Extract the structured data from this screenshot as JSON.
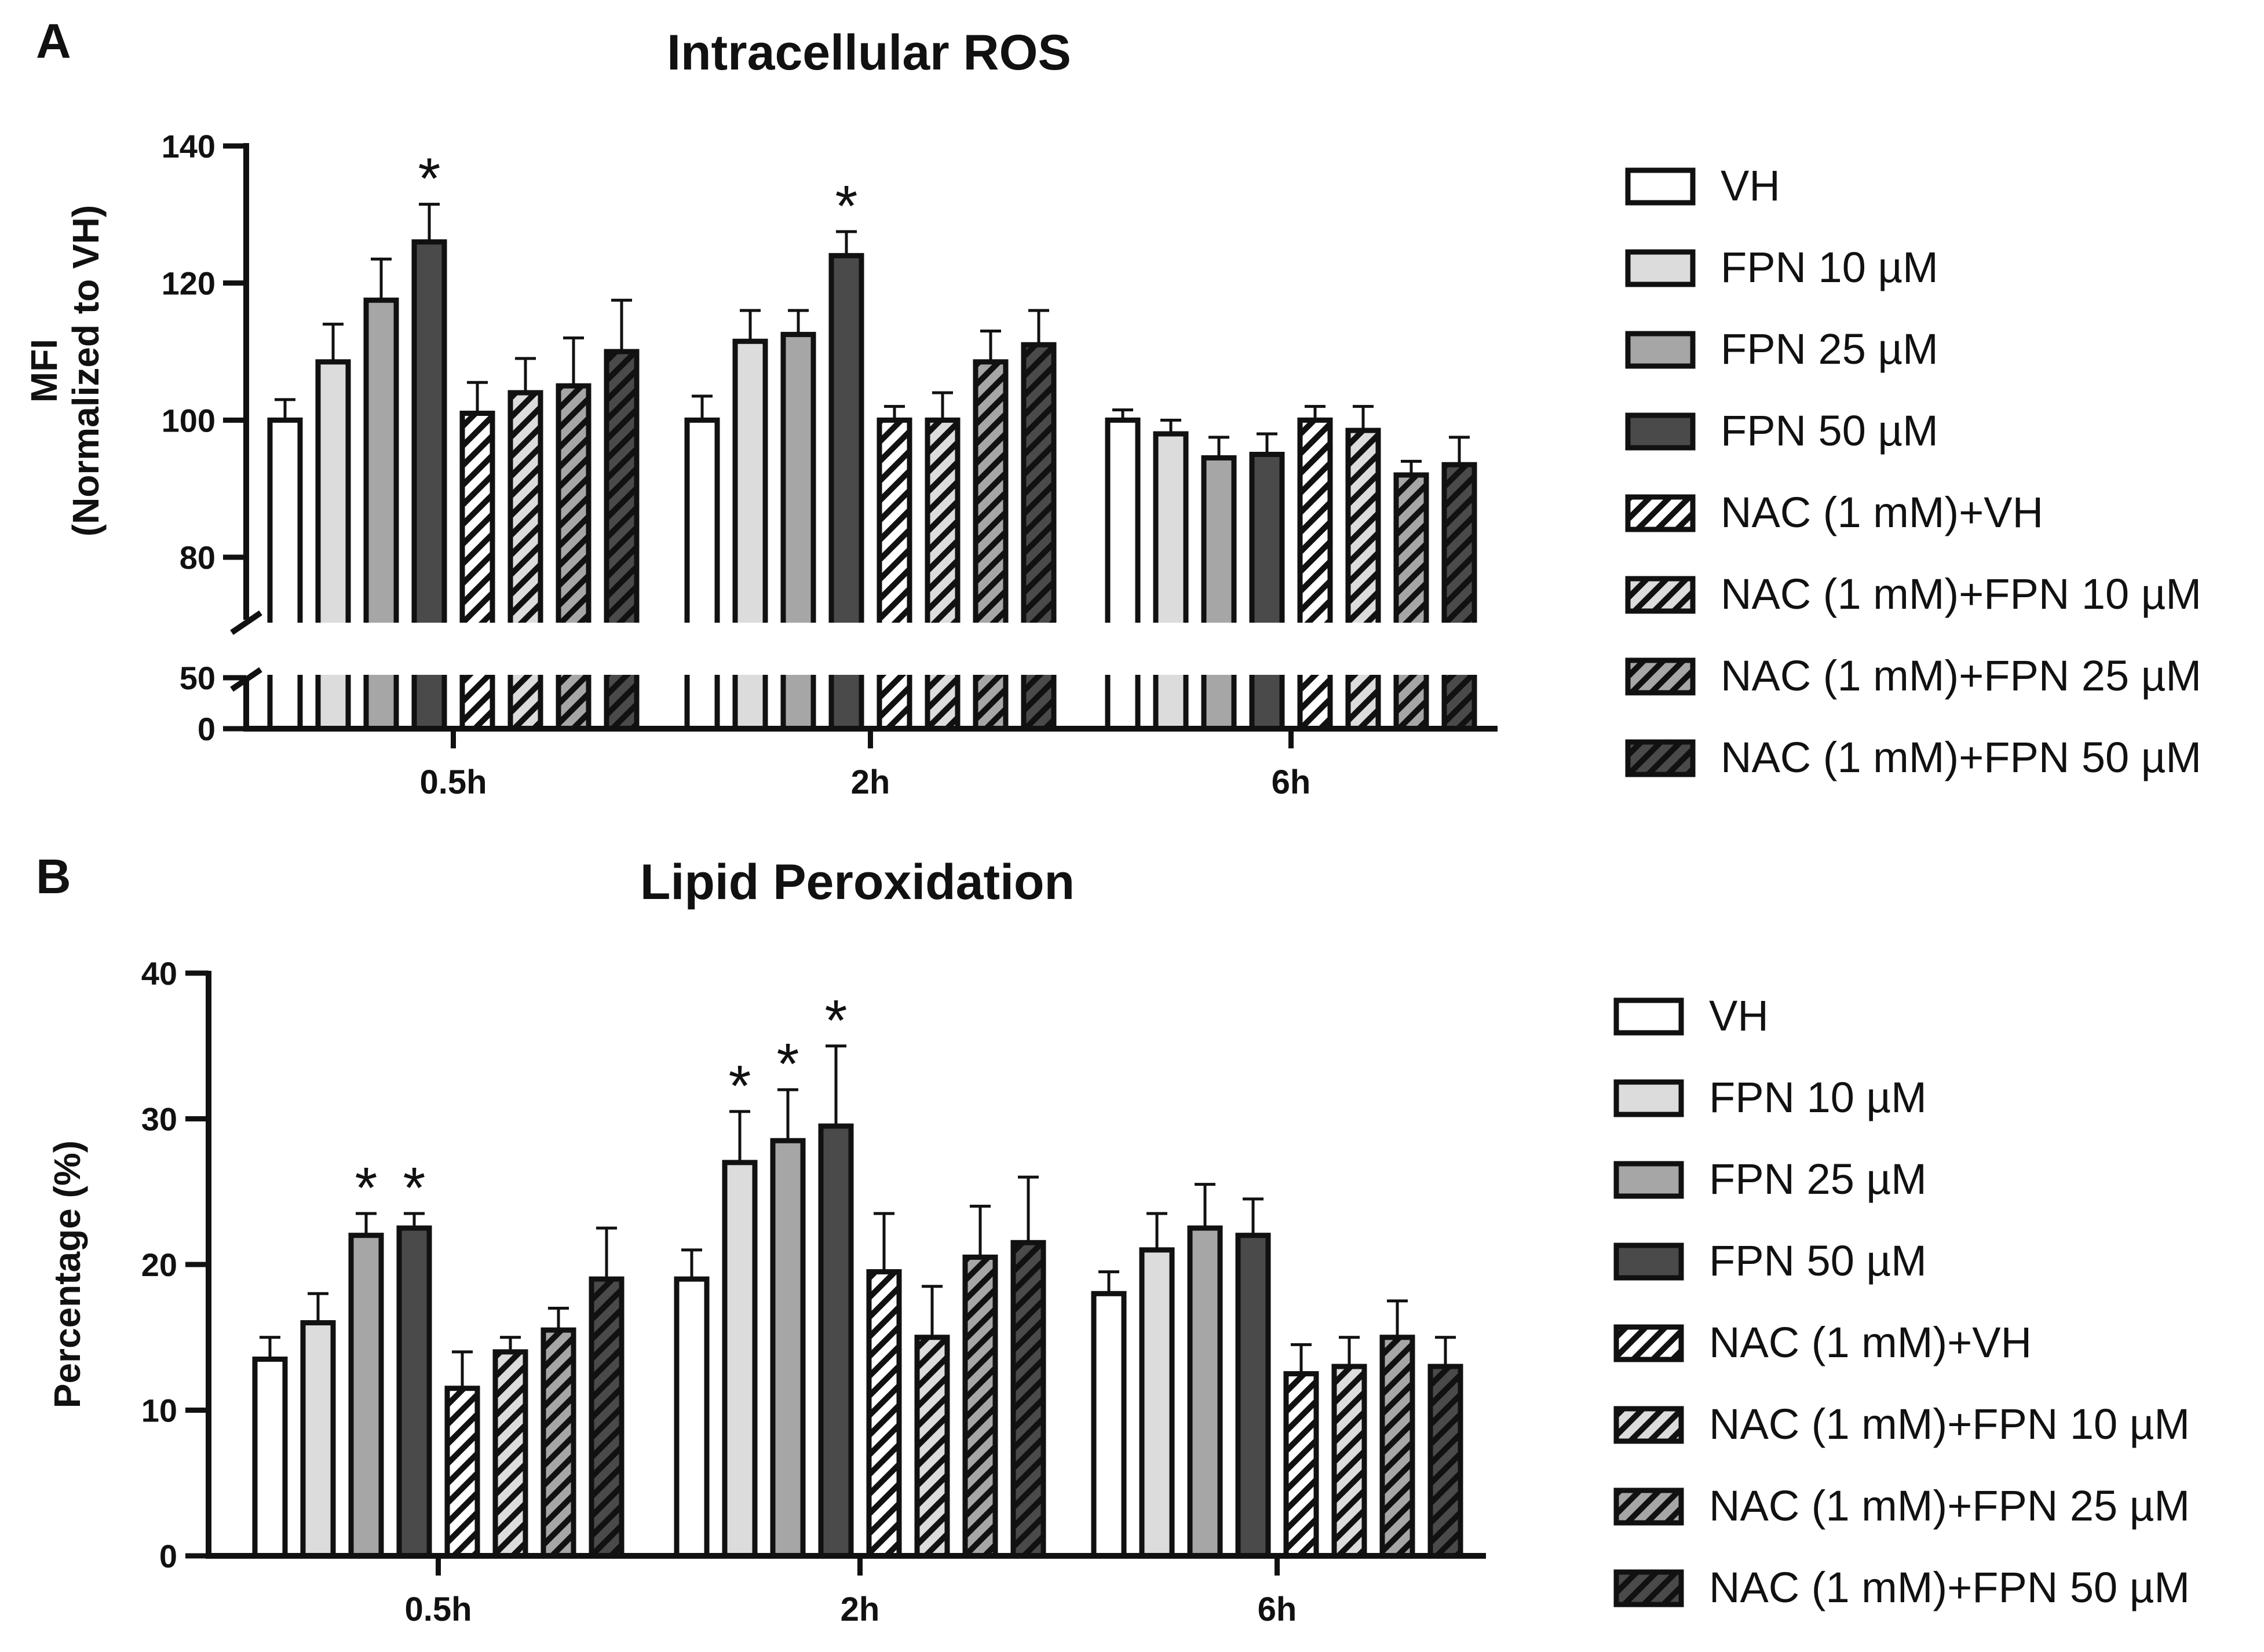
{
  "styles": [
    {
      "fill": "#ffffff",
      "hatch": false
    },
    {
      "fill": "#dcdcdc",
      "hatch": false
    },
    {
      "fill": "#a6a6a6",
      "hatch": false
    },
    {
      "fill": "#4a4a4a",
      "hatch": false
    },
    {
      "fill": "#ffffff",
      "hatch": true
    },
    {
      "fill": "#dcdcdc",
      "hatch": true
    },
    {
      "fill": "#a6a6a6",
      "hatch": true
    },
    {
      "fill": "#4a4a4a",
      "hatch": true
    }
  ],
  "chart_data": [
    {
      "panel": "A",
      "type": "bar",
      "title": "Intracellular ROS",
      "ylabel_line1": "MFI",
      "ylabel_line2": "(Normalized to VH)",
      "xlabel": "",
      "axis_break": {
        "lower_ticks": [
          0,
          50
        ],
        "upper_range": [
          70,
          140
        ]
      },
      "yticks": [
        80,
        100,
        120,
        140
      ],
      "categories": [
        "0.5h",
        "2h",
        "6h"
      ],
      "series": [
        {
          "name": "VH",
          "values": [
            100,
            100,
            100
          ],
          "errors": [
            3,
            3.5,
            1.5
          ],
          "sig": [
            false,
            false,
            false
          ]
        },
        {
          "name": "FPN 10 µM",
          "values": [
            108.5,
            111.5,
            98
          ],
          "errors": [
            5.5,
            4.5,
            2
          ],
          "sig": [
            false,
            false,
            false
          ]
        },
        {
          "name": "FPN 25 µM",
          "values": [
            117.5,
            112.5,
            94.5
          ],
          "errors": [
            6,
            3.5,
            3
          ],
          "sig": [
            false,
            false,
            false
          ]
        },
        {
          "name": "FPN 50 µM",
          "values": [
            126,
            124,
            95
          ],
          "errors": [
            5.5,
            3.5,
            3
          ],
          "sig": [
            true,
            true,
            false
          ]
        },
        {
          "name": "NAC (1 mM)+VH",
          "values": [
            101,
            100,
            100
          ],
          "errors": [
            4.5,
            2,
            2
          ],
          "sig": [
            false,
            false,
            false
          ]
        },
        {
          "name": "NAC (1 mM)+FPN 10 µM",
          "values": [
            104,
            100,
            98.5
          ],
          "errors": [
            5,
            4,
            3.5
          ],
          "sig": [
            false,
            false,
            false
          ]
        },
        {
          "name": "NAC (1 mM)+FPN 25 µM",
          "values": [
            105,
            108.5,
            92
          ],
          "errors": [
            7,
            4.5,
            2
          ],
          "sig": [
            false,
            false,
            false
          ]
        },
        {
          "name": "NAC (1 mM)+FPN 50 µM",
          "values": [
            110,
            111,
            93.5
          ],
          "errors": [
            7.5,
            5,
            4
          ],
          "sig": [
            false,
            false,
            false
          ]
        }
      ]
    },
    {
      "panel": "B",
      "type": "bar",
      "title": "Lipid Peroxidation",
      "ylabel": "Percentage (%)",
      "xlabel": "",
      "ylim": [
        0,
        40
      ],
      "yticks": [
        0,
        10,
        20,
        30,
        40
      ],
      "categories": [
        "0.5h",
        "2h",
        "6h"
      ],
      "series": [
        {
          "name": "VH",
          "values": [
            13.5,
            19,
            18
          ],
          "errors": [
            1.5,
            2,
            1.5
          ],
          "sig": [
            false,
            false,
            false
          ]
        },
        {
          "name": "FPN 10 µM",
          "values": [
            16,
            27,
            21
          ],
          "errors": [
            2,
            3.5,
            2.5
          ],
          "sig": [
            false,
            true,
            false
          ]
        },
        {
          "name": "FPN 25 µM",
          "values": [
            22,
            28.5,
            22.5
          ],
          "errors": [
            1.5,
            3.5,
            3
          ],
          "sig": [
            true,
            true,
            false
          ]
        },
        {
          "name": "FPN 50 µM",
          "values": [
            22.5,
            29.5,
            22
          ],
          "errors": [
            1,
            5.5,
            2.5
          ],
          "sig": [
            true,
            true,
            false
          ]
        },
        {
          "name": "NAC (1 mM)+VH",
          "values": [
            11.5,
            19.5,
            12.5
          ],
          "errors": [
            2.5,
            4,
            2
          ],
          "sig": [
            false,
            false,
            false
          ]
        },
        {
          "name": "NAC (1 mM)+FPN 10 µM",
          "values": [
            14,
            15,
            13
          ],
          "errors": [
            1,
            3.5,
            2
          ],
          "sig": [
            false,
            false,
            false
          ]
        },
        {
          "name": "NAC (1 mM)+FPN 25 µM",
          "values": [
            15.5,
            20.5,
            15
          ],
          "errors": [
            1.5,
            3.5,
            2.5
          ],
          "sig": [
            false,
            false,
            false
          ]
        },
        {
          "name": "NAC (1 mM)+FPN 50 µM",
          "values": [
            19,
            21.5,
            13
          ],
          "errors": [
            3.5,
            4.5,
            2
          ],
          "sig": [
            false,
            false,
            false
          ]
        }
      ]
    }
  ]
}
